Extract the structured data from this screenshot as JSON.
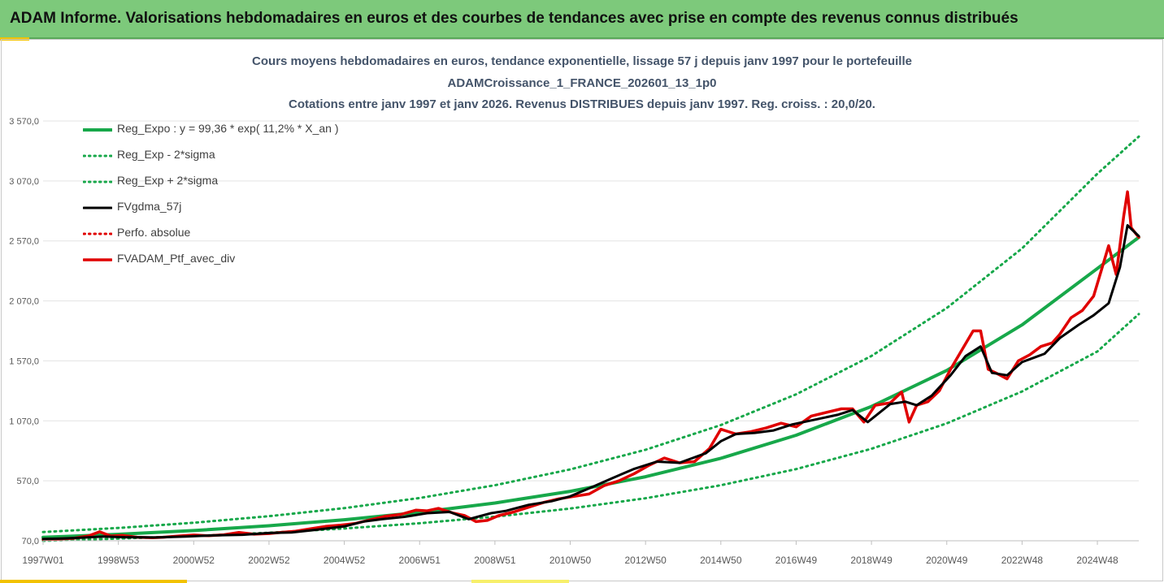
{
  "banner": {
    "title": "ADAM Informe. Valorisations hebdomadaires en euros et des courbes de tendances avec prise en compte des revenus connus distribués"
  },
  "chart_data": {
    "type": "line",
    "title_lines": [
      "Cours moyens hebdomadaires  en euros, tendance exponentielle, lissage 57 j depuis janv 1997 pour le portefeuille",
      "ADAMCroissance_1_FRANCE_202601_13_1p0",
      "Cotations entre janv 1997 et janv 2026. Revenus DISTRIBUES depuis janv 1997. Reg. croiss. : 20,0/20."
    ],
    "x_tick_labels": [
      "1997W01",
      "1998W53",
      "2000W52",
      "2002W52",
      "2004W52",
      "2006W51",
      "2008W51",
      "2010W50",
      "2012W50",
      "2014W50",
      "2016W49",
      "2018W49",
      "2020W49",
      "2022W48",
      "2024W48"
    ],
    "x_tick_years": [
      1997.0,
      1999.0,
      2001.0,
      2003.0,
      2005.0,
      2007.0,
      2009.0,
      2011.0,
      2013.0,
      2015.0,
      2017.0,
      2019.0,
      2021.0,
      2023.0,
      2025.0
    ],
    "x_range": [
      1997.0,
      2026.1
    ],
    "y_tick_labels": [
      "70,0",
      "570,0",
      "1 070,0",
      "1 570,0",
      "2 070,0",
      "2 570,0",
      "3 070,0",
      "3 570,0"
    ],
    "y_ticks": [
      70,
      570,
      1070,
      1570,
      2070,
      2570,
      3070,
      3570
    ],
    "ylim": [
      70,
      3570
    ],
    "legend_position": "top-left",
    "colors": {
      "trend": "#17a84a",
      "smooth": "#000000",
      "portfolio": "#e00000"
    },
    "series": [
      {
        "name": "Reg_Expo : y = 99,36 * exp( 11,2% *  X_an )",
        "style": "solid",
        "color": "#17a84a",
        "width": 4,
        "kind": "trend",
        "x": [
          1997,
          1999,
          2001,
          2003,
          2005,
          2007,
          2009,
          2011,
          2013,
          2015,
          2017,
          2019,
          2021,
          2023,
          2025,
          2026.1
        ],
        "values": [
          99,
          124,
          155,
          195,
          245,
          307,
          385,
          482,
          604,
          758,
          950,
          1190,
          1490,
          1870,
          2340,
          2600
        ]
      },
      {
        "name": "Reg_Exp - 2*sigma",
        "style": "dotted",
        "color": "#17a84a",
        "width": 3,
        "kind": "lower",
        "x": [
          1997,
          1999,
          2001,
          2003,
          2005,
          2007,
          2009,
          2011,
          2013,
          2015,
          2017,
          2019,
          2021,
          2023,
          2025,
          2026.1
        ],
        "values": [
          70,
          88,
          110,
          137,
          172,
          216,
          271,
          339,
          425,
          533,
          668,
          837,
          1049,
          1315,
          1648,
          1960
        ]
      },
      {
        "name": "Reg_Exp + 2*sigma",
        "style": "dotted",
        "color": "#17a84a",
        "width": 3,
        "kind": "upper",
        "x": [
          1997,
          1999,
          2001,
          2003,
          2005,
          2007,
          2009,
          2011,
          2013,
          2015,
          2017,
          2019,
          2021,
          2023,
          2025,
          2026.1
        ],
        "values": [
          143,
          177,
          220,
          275,
          342,
          427,
          533,
          665,
          829,
          1035,
          1291,
          1611,
          2011,
          2508,
          3130,
          3440
        ]
      },
      {
        "name": "FVgdma_57j",
        "style": "solid",
        "color": "#000000",
        "width": 3,
        "kind": "smooth",
        "x": [
          1997.0,
          1997.5,
          1998.0,
          1998.6,
          1999.2,
          2000.0,
          2000.8,
          2001.5,
          2002.3,
          2003.0,
          2003.6,
          2004.2,
          2005.0,
          2005.5,
          2006.0,
          2006.6,
          2007.2,
          2007.8,
          2008.3,
          2008.9,
          2009.3,
          2009.9,
          2010.5,
          2011.0,
          2011.6,
          2012.1,
          2012.7,
          2013.3,
          2013.9,
          2014.6,
          2015.0,
          2015.4,
          2015.9,
          2016.4,
          2016.9,
          2017.5,
          2018.1,
          2018.5,
          2018.9,
          2019.5,
          2019.9,
          2020.2,
          2020.6,
          2021.1,
          2021.5,
          2021.9,
          2022.2,
          2022.6,
          2023.0,
          2023.6,
          2024.0,
          2024.5,
          2024.9,
          2025.3,
          2025.6,
          2025.8,
          2026.1
        ],
        "values": [
          85,
          88,
          95,
          105,
          100,
          98,
          105,
          115,
          120,
          135,
          140,
          160,
          190,
          230,
          250,
          270,
          300,
          310,
          250,
          300,
          320,
          370,
          400,
          440,
          520,
          590,
          670,
          730,
          720,
          800,
          900,
          960,
          970,
          990,
          1040,
          1080,
          1120,
          1160,
          1060,
          1210,
          1230,
          1200,
          1280,
          1450,
          1610,
          1690,
          1470,
          1450,
          1560,
          1630,
          1760,
          1870,
          1950,
          2050,
          2350,
          2700,
          2610
        ]
      },
      {
        "name": "Perfo. absolue",
        "style": "dotted",
        "color": "#e00000",
        "width": 3,
        "kind": "legend-only",
        "x": [],
        "values": []
      },
      {
        "name": "FVADAM_Ptf_avec_div",
        "style": "solid",
        "color": "#e00000",
        "width": 3.5,
        "kind": "portfolio",
        "x": [
          1997.0,
          1997.4,
          1997.8,
          1998.2,
          1998.5,
          1998.8,
          1999.1,
          1999.5,
          1999.9,
          2000.2,
          2000.6,
          2001.0,
          2001.4,
          2001.8,
          2002.2,
          2002.6,
          2003.0,
          2003.3,
          2003.7,
          2004.1,
          2004.5,
          2004.9,
          2005.3,
          2005.7,
          2006.1,
          2006.5,
          2006.9,
          2007.2,
          2007.5,
          2007.9,
          2008.2,
          2008.5,
          2008.8,
          2009.1,
          2009.5,
          2009.9,
          2010.3,
          2010.7,
          2011.1,
          2011.5,
          2011.9,
          2012.3,
          2012.7,
          2013.1,
          2013.5,
          2013.9,
          2014.3,
          2014.7,
          2015.0,
          2015.4,
          2015.8,
          2016.2,
          2016.6,
          2017.0,
          2017.4,
          2017.8,
          2018.2,
          2018.5,
          2018.8,
          2019.1,
          2019.5,
          2019.8,
          2020.0,
          2020.2,
          2020.5,
          2020.8,
          2021.1,
          2021.4,
          2021.7,
          2021.9,
          2022.1,
          2022.3,
          2022.6,
          2022.9,
          2023.2,
          2023.5,
          2023.8,
          2024.0,
          2024.3,
          2024.6,
          2024.9,
          2025.1,
          2025.3,
          2025.5,
          2025.7,
          2025.8,
          2025.9,
          2026.1
        ],
        "values": [
          82,
          85,
          90,
          110,
          145,
          110,
          115,
          100,
          95,
          100,
          110,
          118,
          112,
          120,
          140,
          125,
          130,
          140,
          150,
          170,
          190,
          200,
          215,
          245,
          275,
          290,
          325,
          320,
          340,
          300,
          280,
          230,
          240,
          280,
          310,
          350,
          390,
          420,
          440,
          460,
          530,
          570,
          630,
          700,
          760,
          720,
          730,
          840,
          1000,
          960,
          980,
          1010,
          1050,
          1020,
          1110,
          1140,
          1170,
          1170,
          1060,
          1200,
          1220,
          1310,
          1060,
          1200,
          1230,
          1320,
          1500,
          1660,
          1820,
          1820,
          1500,
          1470,
          1420,
          1570,
          1620,
          1690,
          1720,
          1790,
          1930,
          1990,
          2110,
          2320,
          2530,
          2290,
          2780,
          2980,
          2680,
          2600
        ]
      }
    ]
  }
}
